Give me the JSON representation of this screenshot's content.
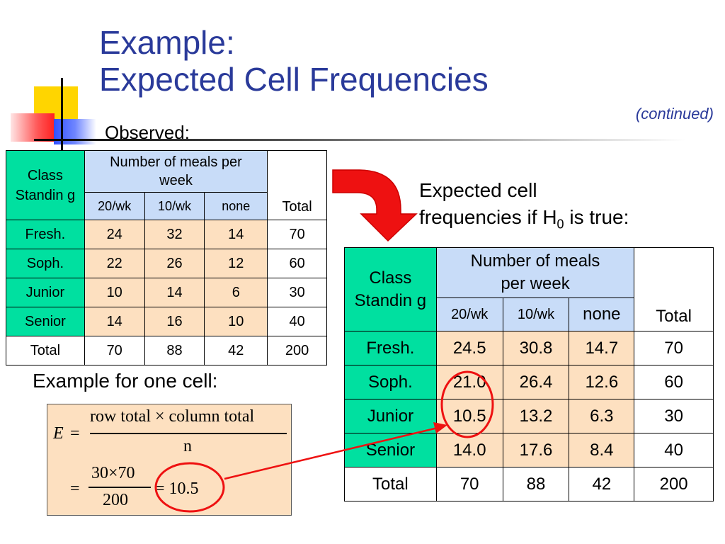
{
  "title": {
    "line1": "Example:",
    "line2": "Expected Cell Frequencies"
  },
  "continued": "(continued)",
  "observed_label": "Observed:",
  "headers": {
    "class_standing": "Class Standin g",
    "meals": "Number of meals per week",
    "col1": "20/wk",
    "col2": "10/wk",
    "col3": "none",
    "total": "Total"
  },
  "observed": {
    "rows": [
      {
        "label": "Fresh.",
        "c1": "24",
        "c2": "32",
        "c3": "14",
        "total": "70"
      },
      {
        "label": "Soph.",
        "c1": "22",
        "c2": "26",
        "c3": "12",
        "total": "60"
      },
      {
        "label": "Junior",
        "c1": "10",
        "c2": "14",
        "c3": "6",
        "total": "30"
      },
      {
        "label": "Senior",
        "c1": "14",
        "c2": "16",
        "c3": "10",
        "total": "40"
      }
    ],
    "totals": {
      "label": "Total",
      "c1": "70",
      "c2": "88",
      "c3": "42",
      "total": "200"
    }
  },
  "expected_heading": {
    "line1": "Expected cell",
    "line2a": "frequencies  if H",
    "sub": "0",
    "line2b": " is true:"
  },
  "expected": {
    "rows": [
      {
        "label": "Fresh.",
        "c1": "24.5",
        "c2": "30.8",
        "c3": "14.7",
        "total": "70"
      },
      {
        "label": "Soph.",
        "c1": "21.0",
        "c2": "26.4",
        "c3": "12.6",
        "total": "60"
      },
      {
        "label": "Junior",
        "c1": "10.5",
        "c2": "13.2",
        "c3": "6.3",
        "total": "30"
      },
      {
        "label": "Senior",
        "c1": "14.0",
        "c2": "17.6",
        "c3": "8.4",
        "total": "40"
      }
    ],
    "totals": {
      "label": "Total",
      "c1": "70",
      "c2": "88",
      "c3": "42",
      "total": "200"
    }
  },
  "example_label": "Example for one cell:",
  "formula": {
    "E": "E",
    "eq": "=",
    "numerator": "row total × column total",
    "denominator": "n",
    "num2": "30×70",
    "den2": "200",
    "result": "= 10.5"
  },
  "colors": {
    "title": "#2a3a9a",
    "label_green": "#00e0a0",
    "header_blue": "#c8dcf8",
    "cell_peach": "#fde0c0",
    "highlight_red": "#ee1111"
  }
}
